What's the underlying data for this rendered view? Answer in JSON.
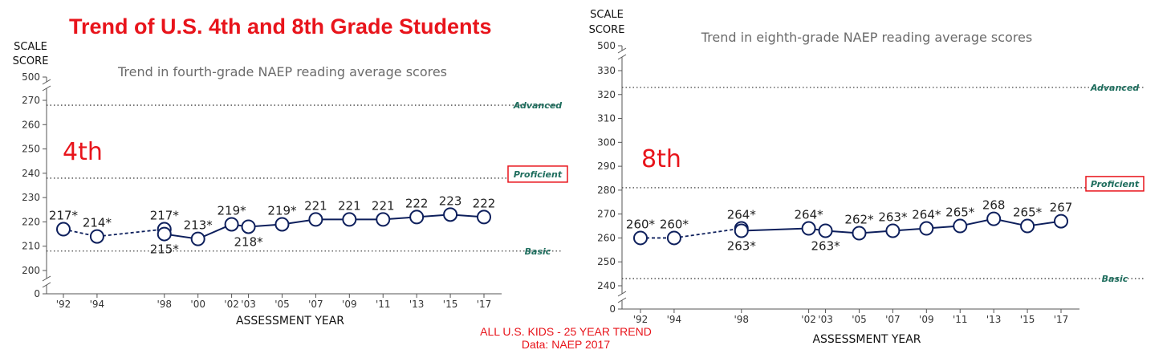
{
  "header": {
    "title": "Trend of U.S. 4th and 8th Grade Students"
  },
  "footer": {
    "line1": "ALL U.S. KIDS - 25 YEAR TREND",
    "line2": "Data: NAEP 2017"
  },
  "colors": {
    "title_red": "#e8141b",
    "series_navy": "#0d1f5c",
    "level_teal": "#1f6e5e",
    "axis_gray": "#555555"
  },
  "chart_data": [
    {
      "type": "line",
      "title": "Trend in fourth-grade NAEP reading average scores",
      "grade_label": "4th",
      "ylabel": [
        "SCALE",
        "SCORE"
      ],
      "xlabel": "ASSESSMENT YEAR",
      "ylim": [
        200,
        270
      ],
      "y_ticks": [
        200,
        210,
        220,
        230,
        240,
        250,
        260,
        270
      ],
      "y_zero_label": "0",
      "y_top_label": "500",
      "x": [
        1992,
        1994,
        1998,
        1998,
        2000,
        2002,
        2003,
        2005,
        2007,
        2009,
        2011,
        2013,
        2015,
        2017
      ],
      "x_ticks": [
        {
          "year": 1992,
          "label": "'92"
        },
        {
          "year": 1994,
          "label": "'94"
        },
        {
          "year": 1998,
          "label": "'98"
        },
        {
          "year": 2000,
          "label": "'00"
        },
        {
          "year": 2002,
          "label": "'02"
        },
        {
          "year": 2003,
          "label": "'03"
        },
        {
          "year": 2005,
          "label": "'05"
        },
        {
          "year": 2007,
          "label": "'07"
        },
        {
          "year": 2009,
          "label": "'09"
        },
        {
          "year": 2011,
          "label": "'11"
        },
        {
          "year": 2013,
          "label": "'13"
        },
        {
          "year": 2015,
          "label": "'15"
        },
        {
          "year": 2017,
          "label": "'17"
        }
      ],
      "series": [
        {
          "points": [
            {
              "x": 1992,
              "y": 217,
              "label": "217*",
              "pos": "above"
            },
            {
              "x": 1994,
              "y": 214,
              "label": "214*",
              "pos": "above"
            },
            {
              "x": 1998,
              "y": 217,
              "label": "217*",
              "pos": "above"
            },
            {
              "x": 1998,
              "y": 215,
              "label": "215*",
              "pos": "below"
            },
            {
              "x": 2000,
              "y": 213,
              "label": "213*",
              "pos": "above"
            },
            {
              "x": 2002,
              "y": 219,
              "label": "219*",
              "pos": "above"
            },
            {
              "x": 2003,
              "y": 218,
              "label": "218*",
              "pos": "below"
            },
            {
              "x": 2005,
              "y": 219,
              "label": "219*",
              "pos": "above"
            },
            {
              "x": 2007,
              "y": 221,
              "label": "221",
              "pos": "above"
            },
            {
              "x": 2009,
              "y": 221,
              "label": "221",
              "pos": "above"
            },
            {
              "x": 2011,
              "y": 221,
              "label": "221",
              "pos": "above"
            },
            {
              "x": 2013,
              "y": 222,
              "label": "222",
              "pos": "above"
            },
            {
              "x": 2015,
              "y": 223,
              "label": "223",
              "pos": "above"
            },
            {
              "x": 2017,
              "y": 222,
              "label": "222",
              "pos": "above"
            }
          ],
          "dashed_segments": [
            [
              0,
              1
            ],
            [
              1,
              2
            ]
          ],
          "solid_segments": [
            [
              3,
              4
            ],
            [
              4,
              5
            ],
            [
              5,
              6
            ],
            [
              6,
              7
            ],
            [
              7,
              8
            ],
            [
              8,
              9
            ],
            [
              9,
              10
            ],
            [
              10,
              11
            ],
            [
              11,
              12
            ],
            [
              12,
              13
            ]
          ]
        }
      ],
      "levels": [
        {
          "name": "Advanced",
          "value": 268,
          "boxed": false
        },
        {
          "name": "Proficient",
          "value": 238,
          "boxed": true
        },
        {
          "name": "Basic",
          "value": 208,
          "boxed": false
        }
      ]
    },
    {
      "type": "line",
      "title": "Trend in eighth-grade NAEP reading average scores",
      "grade_label": "8th",
      "ylabel": [
        "SCALE",
        "SCORE"
      ],
      "xlabel": "ASSESSMENT YEAR",
      "ylim": [
        240,
        330
      ],
      "y_ticks": [
        240,
        250,
        260,
        270,
        280,
        290,
        300,
        310,
        320,
        330
      ],
      "y_zero_label": "0",
      "y_top_label": "500",
      "x": [
        1992,
        1994,
        1998,
        1998,
        2002,
        2003,
        2005,
        2007,
        2009,
        2011,
        2013,
        2015,
        2017
      ],
      "x_ticks": [
        {
          "year": 1992,
          "label": "'92"
        },
        {
          "year": 1994,
          "label": "'94"
        },
        {
          "year": 1998,
          "label": "'98"
        },
        {
          "year": 2002,
          "label": "'02"
        },
        {
          "year": 2003,
          "label": "'03"
        },
        {
          "year": 2005,
          "label": "'05"
        },
        {
          "year": 2007,
          "label": "'07"
        },
        {
          "year": 2009,
          "label": "'09"
        },
        {
          "year": 2011,
          "label": "'11"
        },
        {
          "year": 2013,
          "label": "'13"
        },
        {
          "year": 2015,
          "label": "'15"
        },
        {
          "year": 2017,
          "label": "'17"
        }
      ],
      "series": [
        {
          "points": [
            {
              "x": 1992,
              "y": 260,
              "label": "260*",
              "pos": "above"
            },
            {
              "x": 1994,
              "y": 260,
              "label": "260*",
              "pos": "above"
            },
            {
              "x": 1998,
              "y": 264,
              "label": "264*",
              "pos": "above"
            },
            {
              "x": 1998,
              "y": 263,
              "label": "263*",
              "pos": "below"
            },
            {
              "x": 2002,
              "y": 264,
              "label": "264*",
              "pos": "above"
            },
            {
              "x": 2003,
              "y": 263,
              "label": "263*",
              "pos": "below"
            },
            {
              "x": 2005,
              "y": 262,
              "label": "262*",
              "pos": "above"
            },
            {
              "x": 2007,
              "y": 263,
              "label": "263*",
              "pos": "above"
            },
            {
              "x": 2009,
              "y": 264,
              "label": "264*",
              "pos": "above"
            },
            {
              "x": 2011,
              "y": 265,
              "label": "265*",
              "pos": "above"
            },
            {
              "x": 2013,
              "y": 268,
              "label": "268",
              "pos": "above"
            },
            {
              "x": 2015,
              "y": 265,
              "label": "265*",
              "pos": "above"
            },
            {
              "x": 2017,
              "y": 267,
              "label": "267",
              "pos": "above"
            }
          ],
          "dashed_segments": [
            [
              0,
              1
            ],
            [
              1,
              2
            ]
          ],
          "solid_segments": [
            [
              3,
              4
            ],
            [
              4,
              5
            ],
            [
              5,
              6
            ],
            [
              6,
              7
            ],
            [
              7,
              8
            ],
            [
              8,
              9
            ],
            [
              9,
              10
            ],
            [
              10,
              11
            ],
            [
              11,
              12
            ]
          ]
        }
      ],
      "levels": [
        {
          "name": "Advanced",
          "value": 323,
          "boxed": false
        },
        {
          "name": "Proficient",
          "value": 281,
          "boxed": true
        },
        {
          "name": "Basic",
          "value": 243,
          "boxed": false
        }
      ]
    }
  ]
}
